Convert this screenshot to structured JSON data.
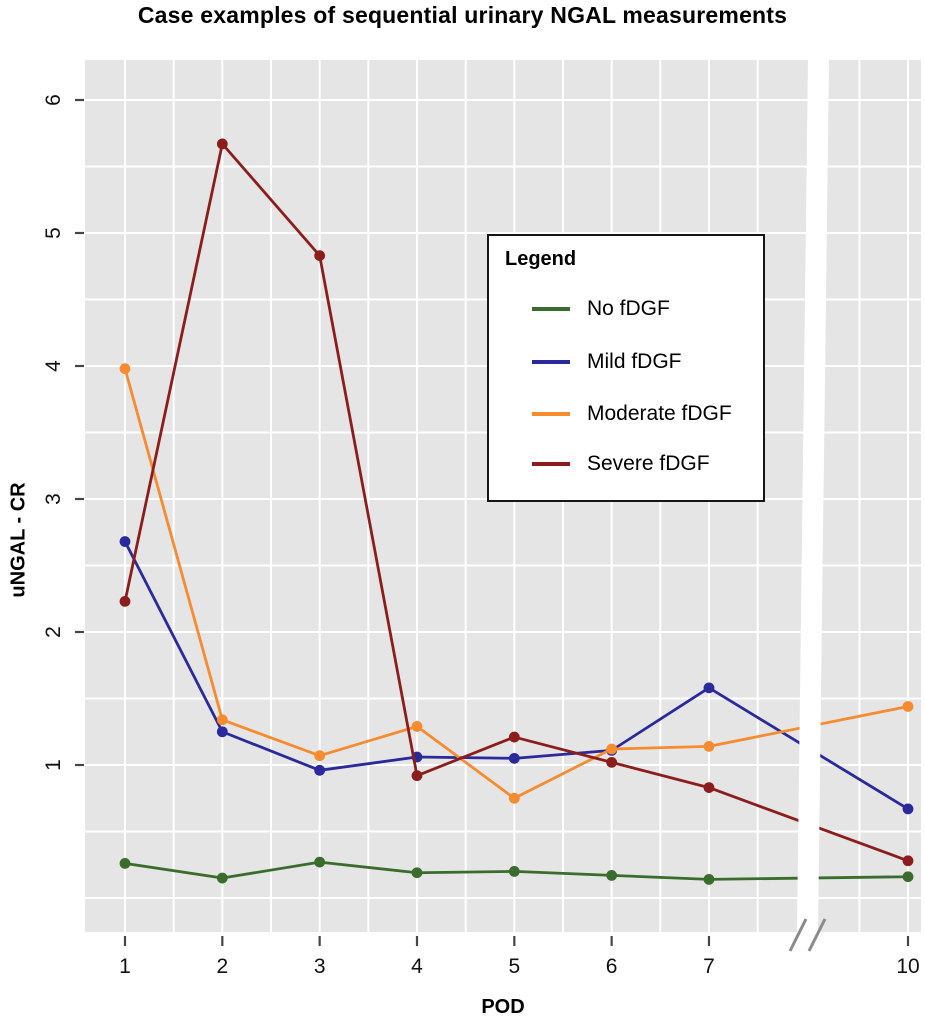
{
  "chart_data": {
    "type": "line",
    "title": "Case examples of sequential urinary NGAL measurements",
    "xlabel": "POD",
    "ylabel": "uNGAL - CR",
    "x": [
      1,
      2,
      3,
      4,
      5,
      6,
      7,
      10
    ],
    "x_tick_labels": [
      "1",
      "2",
      "3",
      "4",
      "5",
      "6",
      "7",
      "10"
    ],
    "y_ticks": [
      1,
      2,
      3,
      4,
      5,
      6
    ],
    "y_tick_labels": [
      "1",
      "2",
      "3",
      "4",
      "5",
      "6"
    ],
    "ylim": [
      -0.26,
      6.3
    ],
    "x_axis_break": {
      "after_pod": 7,
      "before_pod": 10,
      "symbol": "//"
    },
    "grid": {
      "show": true,
      "gridline_color": "#ffffff",
      "panel_background": "#e5e5e5",
      "minor_interval_y": 0.5
    },
    "legend": {
      "title": "Legend",
      "position": "upper-center"
    },
    "series": [
      {
        "name": "No fDGF",
        "color": "#3A6D2D",
        "values": [
          0.26,
          0.15,
          0.27,
          0.19,
          0.2,
          0.17,
          0.14,
          0.16
        ]
      },
      {
        "name": "Mild fDGF",
        "color": "#2A2A9B",
        "values": [
          2.68,
          1.25,
          0.96,
          1.06,
          1.05,
          1.11,
          1.58,
          0.67
        ]
      },
      {
        "name": "Moderate fDGF",
        "color": "#F68B30",
        "values": [
          3.98,
          1.34,
          1.07,
          1.29,
          0.75,
          1.12,
          1.14,
          1.44
        ]
      },
      {
        "name": "Severe fDGF",
        "color": "#8C1D1D",
        "values": [
          2.23,
          5.67,
          4.83,
          0.92,
          1.21,
          1.02,
          0.83,
          0.28
        ]
      }
    ]
  }
}
